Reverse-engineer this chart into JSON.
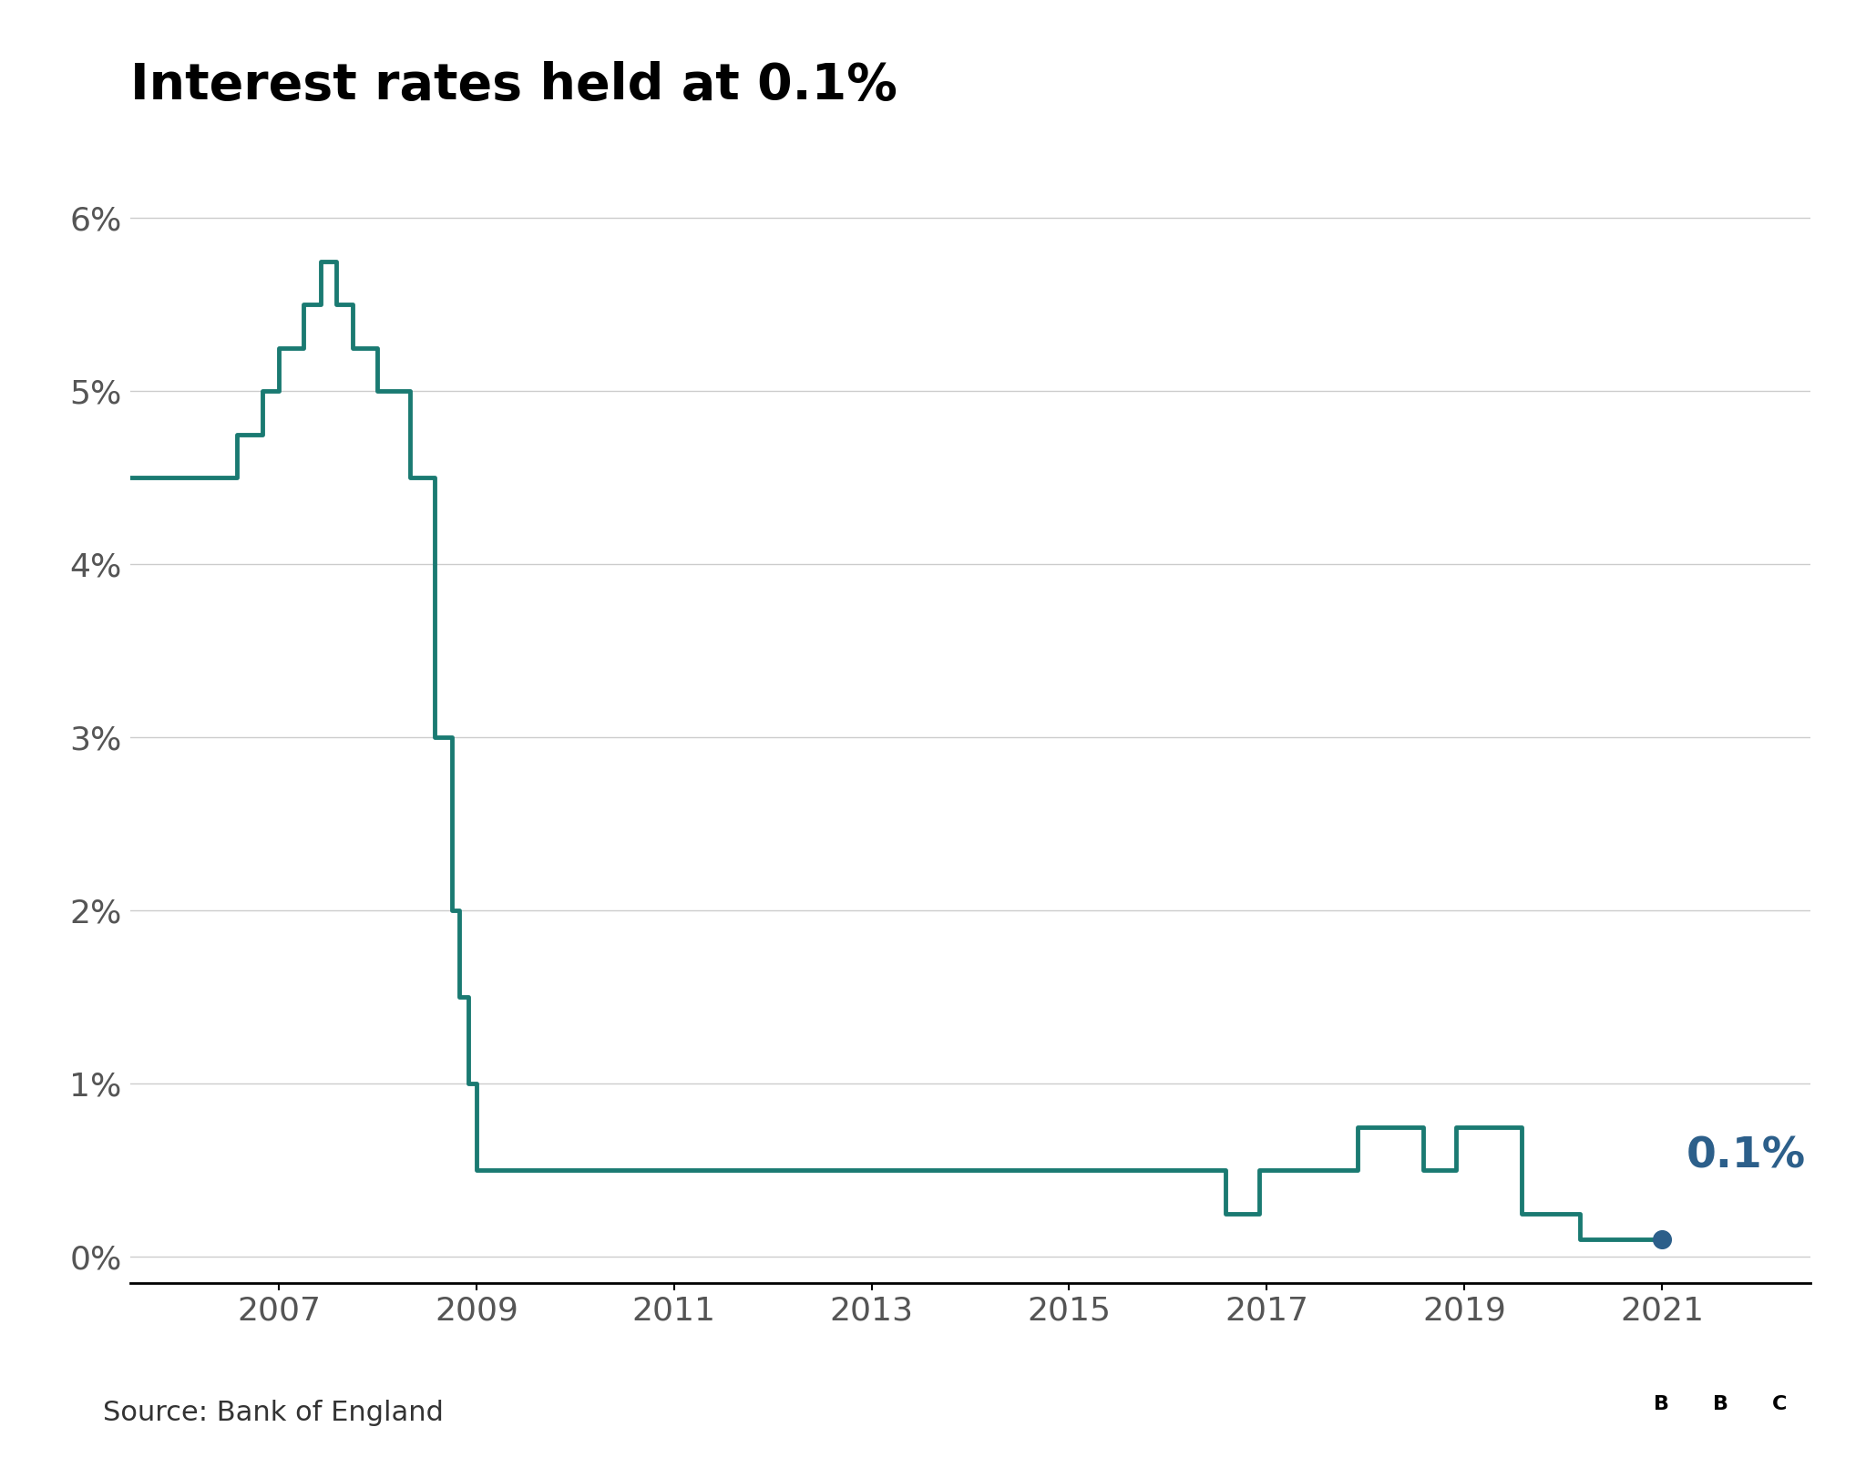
{
  "title": "Interest rates held at 0.1%",
  "line_color": "#1a7a72",
  "dot_color": "#2c5f8a",
  "annotation_color": "#2c5f8a",
  "annotation_text": "0.1%",
  "background_color": "#ffffff",
  "grid_color": "#cccccc",
  "source_text": "Source: Bank of England",
  "ytick_labels": [
    "0%",
    "1%",
    "2%",
    "3%",
    "4%",
    "5%",
    "6%"
  ],
  "ytick_values": [
    0,
    1,
    2,
    3,
    4,
    5,
    6
  ],
  "xlim": [
    2005.5,
    2022.5
  ],
  "ylim": [
    -0.15,
    6.5
  ],
  "xtick_values": [
    2007,
    2009,
    2011,
    2013,
    2015,
    2017,
    2019,
    2021
  ],
  "rate_dates": [
    2005.5,
    2006.58,
    2006.83,
    2007.0,
    2007.25,
    2007.42,
    2007.58,
    2007.75,
    2008.0,
    2008.33,
    2008.58,
    2008.75,
    2008.83,
    2008.92,
    2009.0,
    2009.08,
    2009.25,
    2016.58,
    2016.92,
    2017.92,
    2018.58,
    2018.92,
    2019.58,
    2020.17,
    2020.25,
    2021.0
  ],
  "rate_values": [
    4.5,
    4.75,
    5.0,
    5.25,
    5.5,
    5.75,
    5.5,
    5.25,
    5.0,
    4.5,
    3.0,
    2.0,
    1.5,
    1.0,
    0.5,
    0.5,
    0.5,
    0.25,
    0.5,
    0.75,
    0.5,
    0.75,
    0.25,
    0.1,
    0.1,
    0.1
  ],
  "dot_x": 2021.0,
  "dot_y": 0.1,
  "line_width": 3.5,
  "dot_size": 200,
  "title_fontsize": 40,
  "tick_fontsize": 26,
  "annotation_fontsize": 34,
  "source_fontsize": 22
}
